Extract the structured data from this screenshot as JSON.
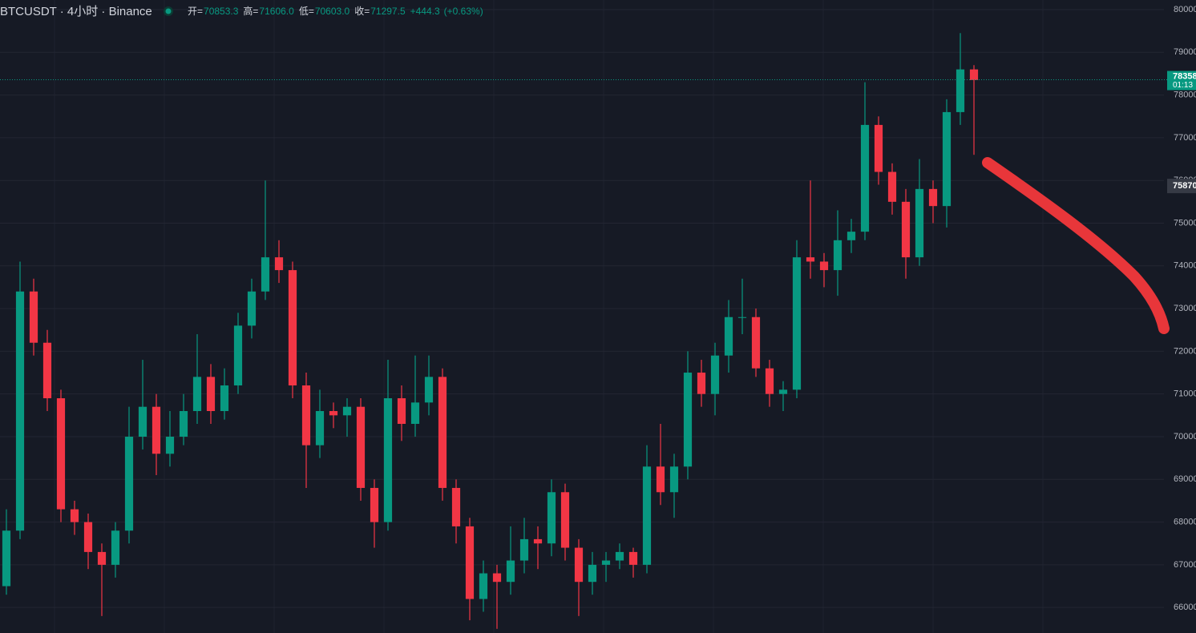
{
  "chart_data": {
    "type": "candlestick",
    "title": "BTCUSDT · 4小时 · Binance",
    "legend": [
      {
        "label": "开=",
        "value": "70853.3"
      },
      {
        "label": "高=",
        "value": "71606.0"
      },
      {
        "label": "低=",
        "value": "70603.0"
      },
      {
        "label": "收=",
        "value": "71297.5"
      }
    ],
    "change": "+444.3",
    "change_pct": "(+0.63%)",
    "up_color": "#089981",
    "down_color": "#f23645",
    "ylim": [
      65403,
      80225
    ],
    "yticks": [
      66000,
      67000,
      68000,
      69000,
      70000,
      71000,
      72000,
      73000,
      74000,
      75000,
      76000,
      77000,
      78000,
      79000,
      80000
    ],
    "grid": true,
    "last_price": 78358,
    "countdown": "01:13",
    "marker_price": 75870,
    "open": [
      66500,
      67800,
      73400,
      72200,
      70900,
      68300,
      68000,
      67300,
      67000,
      67800,
      70000,
      70700,
      69600,
      70000,
      70600,
      71400,
      70600,
      71200,
      72600,
      73400,
      74200,
      73900,
      71200,
      69800,
      70600,
      70500,
      70700,
      68800,
      68000,
      70900,
      70300,
      70800,
      71400,
      68800,
      67900,
      66200,
      66800,
      66600,
      67100,
      67600,
      67500,
      68700,
      67400,
      66600,
      67000,
      67100,
      67300,
      67000,
      69300,
      68700,
      69300,
      71500,
      71000,
      71900,
      72800,
      72800,
      71600,
      71000,
      71100,
      74200,
      74100,
      73900,
      74600,
      74800,
      77300,
      76200,
      75500,
      74200,
      75800,
      75400,
      77600,
      78600
    ],
    "high": [
      68300,
      74100,
      73700,
      72500,
      71100,
      68500,
      68200,
      67500,
      68000,
      70700,
      71800,
      71000,
      70600,
      71000,
      72400,
      71700,
      71600,
      72900,
      73700,
      76000,
      74600,
      74100,
      71500,
      71100,
      70800,
      70900,
      70900,
      69000,
      71800,
      71200,
      71900,
      71900,
      71600,
      69000,
      68100,
      67100,
      67000,
      67900,
      68100,
      67900,
      69000,
      68900,
      67600,
      67300,
      67300,
      67500,
      67400,
      69800,
      70300,
      69600,
      72000,
      71800,
      72200,
      73200,
      73700,
      73000,
      71800,
      71300,
      74600,
      76000,
      74300,
      75300,
      75100,
      78300,
      77500,
      76400,
      75800,
      76500,
      76000,
      77900,
      79450,
      78700
    ],
    "low": [
      66300,
      67600,
      71900,
      70600,
      68000,
      67700,
      66900,
      65800,
      66700,
      67500,
      69700,
      69100,
      69300,
      69800,
      70300,
      70300,
      70400,
      71000,
      72300,
      73200,
      73600,
      70900,
      68800,
      69500,
      70200,
      70000,
      68500,
      67400,
      67800,
      69900,
      70000,
      70500,
      68500,
      67500,
      65700,
      65900,
      65500,
      66300,
      66800,
      66900,
      67200,
      67100,
      65800,
      66300,
      66600,
      66900,
      66700,
      66800,
      68400,
      68100,
      69000,
      70700,
      70500,
      71500,
      72400,
      71400,
      70700,
      70600,
      70900,
      73700,
      73500,
      73300,
      74300,
      74600,
      75900,
      75200,
      73700,
      74000,
      75000,
      74900,
      77300,
      76600
    ],
    "close": [
      67800,
      73400,
      72200,
      70900,
      68300,
      68000,
      67300,
      67000,
      67800,
      70000,
      70700,
      69600,
      70000,
      70600,
      71400,
      70600,
      71200,
      72600,
      73400,
      74200,
      73900,
      71200,
      69800,
      70600,
      70500,
      70700,
      68800,
      68000,
      70900,
      70300,
      70800,
      71400,
      68800,
      67900,
      66200,
      66800,
      66600,
      67100,
      67600,
      67500,
      68700,
      67400,
      66600,
      67000,
      67100,
      67300,
      67000,
      69300,
      68700,
      69300,
      71500,
      71000,
      71900,
      72800,
      72800,
      71600,
      71000,
      71100,
      74200,
      74100,
      73900,
      74600,
      74800,
      77300,
      76200,
      75500,
      74200,
      75800,
      75400,
      77600,
      78600,
      78350
    ]
  }
}
